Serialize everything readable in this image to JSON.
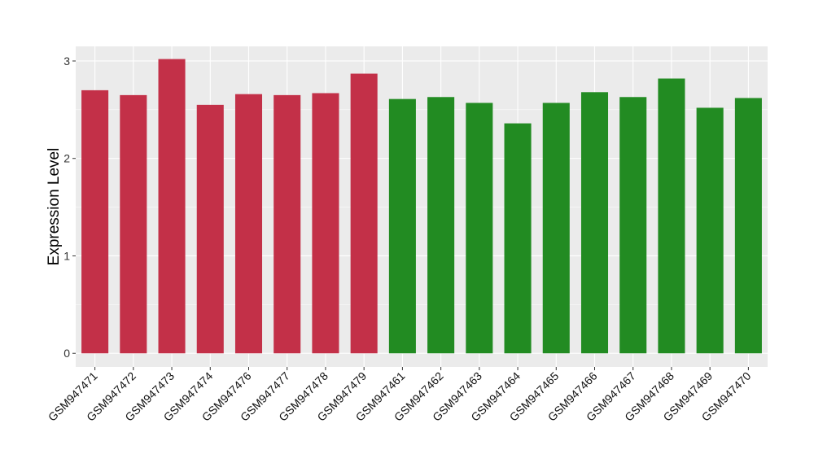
{
  "chart_data": {
    "type": "bar",
    "title": "",
    "xlabel": "",
    "ylabel": "Expression Level",
    "ylim": [
      -0.14,
      3.15
    ],
    "yticks": [
      0,
      1,
      2,
      3
    ],
    "grid": true,
    "categories": [
      "GSM947471",
      "GSM947472",
      "GSM947473",
      "GSM947474",
      "GSM947476",
      "GSM947477",
      "GSM947478",
      "GSM947479",
      "GSM947461",
      "GSM947462",
      "GSM947463",
      "GSM947464",
      "GSM947465",
      "GSM947466",
      "GSM947467",
      "GSM947468",
      "GSM947469",
      "GSM947470"
    ],
    "values": [
      2.7,
      2.65,
      3.02,
      2.55,
      2.66,
      2.65,
      2.67,
      2.87,
      2.61,
      2.63,
      2.57,
      2.36,
      2.57,
      2.68,
      2.63,
      2.82,
      2.52,
      2.62
    ],
    "groups": [
      "a",
      "a",
      "a",
      "a",
      "a",
      "a",
      "a",
      "a",
      "b",
      "b",
      "b",
      "b",
      "b",
      "b",
      "b",
      "b",
      "b",
      "b"
    ],
    "colors": {
      "a": "#C33048",
      "b": "#228B22",
      "panel": "#EBEBEB",
      "grid": "#FFFFFF"
    }
  }
}
